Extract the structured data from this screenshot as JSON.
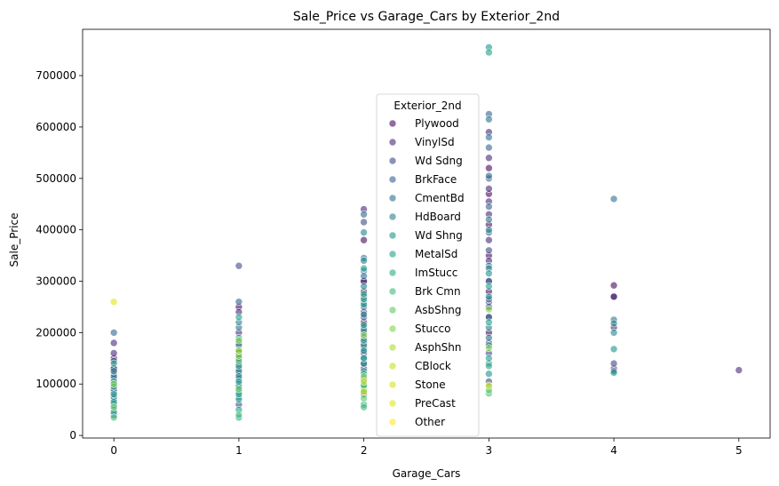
{
  "chart_data": {
    "type": "scatter",
    "title": "Sale_Price vs Garage_Cars by Exterior_2nd",
    "xlabel": "Garage_Cars",
    "ylabel": "Sale_Price",
    "xlim": [
      -0.25,
      5.25
    ],
    "ylim": [
      -5000,
      790000
    ],
    "xticks": [
      0,
      1,
      2,
      3,
      4,
      5
    ],
    "yticks": [
      0,
      100000,
      200000,
      300000,
      400000,
      500000,
      600000,
      700000
    ],
    "grid": false,
    "legend": {
      "title": "Exterior_2nd",
      "placement": "center"
    },
    "series": [
      {
        "name": "Plywood",
        "color": "#46085c",
        "points": [
          [
            0,
            150000
          ],
          [
            0,
            130000
          ],
          [
            1,
            140000
          ],
          [
            1,
            180000
          ],
          [
            1,
            250000
          ],
          [
            2,
            180000
          ],
          [
            2,
            220000
          ],
          [
            2,
            280000
          ],
          [
            2,
            300000
          ],
          [
            2,
            380000
          ],
          [
            3,
            200000
          ],
          [
            3,
            280000
          ],
          [
            3,
            350000
          ],
          [
            3,
            410000
          ],
          [
            3,
            470000
          ],
          [
            3,
            520000
          ],
          [
            4,
            292000
          ],
          [
            4,
            270000
          ]
        ]
      },
      {
        "name": "VinylSd",
        "color": "#482878",
        "points": [
          [
            0,
            130000
          ],
          [
            0,
            160000
          ],
          [
            0,
            180000
          ],
          [
            1,
            120000
          ],
          [
            1,
            160000
          ],
          [
            1,
            200000
          ],
          [
            1,
            240000
          ],
          [
            2,
            130000
          ],
          [
            2,
            160000
          ],
          [
            2,
            190000
          ],
          [
            2,
            210000
          ],
          [
            2,
            240000
          ],
          [
            2,
            270000
          ],
          [
            2,
            300000
          ],
          [
            2,
            440000
          ],
          [
            3,
            180000
          ],
          [
            3,
            230000
          ],
          [
            3,
            260000
          ],
          [
            3,
            300000
          ],
          [
            3,
            340000
          ],
          [
            3,
            380000
          ],
          [
            3,
            430000
          ],
          [
            3,
            455000
          ],
          [
            3,
            480000
          ],
          [
            3,
            540000
          ],
          [
            3,
            590000
          ],
          [
            4,
            270000
          ],
          [
            4,
            210000
          ],
          [
            4,
            130000
          ],
          [
            5,
            127000
          ]
        ]
      },
      {
        "name": "Wd Sdng",
        "color": "#3e4a89",
        "points": [
          [
            0,
            40000
          ],
          [
            0,
            60000
          ],
          [
            0,
            85000
          ],
          [
            0,
            100000
          ],
          [
            0,
            120000
          ],
          [
            0,
            145000
          ],
          [
            1,
            60000
          ],
          [
            1,
            85000
          ],
          [
            1,
            110000
          ],
          [
            1,
            130000
          ],
          [
            1,
            330000
          ],
          [
            2,
            80000
          ],
          [
            2,
            110000
          ],
          [
            2,
            140000
          ],
          [
            2,
            230000
          ],
          [
            2,
            415000
          ],
          [
            3,
            105000
          ],
          [
            3,
            160000
          ],
          [
            3,
            250000
          ],
          [
            3,
            360000
          ],
          [
            3,
            500000
          ],
          [
            4,
            140000
          ],
          [
            4,
            125000
          ]
        ]
      },
      {
        "name": "BrkFace",
        "color": "#33638d",
        "points": [
          [
            0,
            90000
          ],
          [
            0,
            110000
          ],
          [
            0,
            200000
          ],
          [
            1,
            100000
          ],
          [
            1,
            150000
          ],
          [
            1,
            260000
          ],
          [
            2,
            150000
          ],
          [
            2,
            200000
          ],
          [
            2,
            260000
          ],
          [
            2,
            320000
          ],
          [
            2,
            430000
          ],
          [
            3,
            230000
          ],
          [
            3,
            300000
          ],
          [
            3,
            395000
          ],
          [
            3,
            445000
          ],
          [
            3,
            560000
          ],
          [
            3,
            625000
          ]
        ]
      },
      {
        "name": "CmentBd",
        "color": "#2c728e",
        "points": [
          [
            0,
            70000
          ],
          [
            0,
            115000
          ],
          [
            1,
            150000
          ],
          [
            1,
            210000
          ],
          [
            2,
            170000
          ],
          [
            2,
            250000
          ],
          [
            2,
            310000
          ],
          [
            2,
            345000
          ],
          [
            3,
            190000
          ],
          [
            3,
            265000
          ],
          [
            3,
            330000
          ],
          [
            3,
            420000
          ],
          [
            3,
            505000
          ],
          [
            3,
            580000
          ],
          [
            3,
            615000
          ],
          [
            4,
            460000
          ],
          [
            4,
            225000
          ]
        ]
      },
      {
        "name": "HdBoard",
        "color": "#26828e",
        "points": [
          [
            0,
            50000
          ],
          [
            0,
            75000
          ],
          [
            0,
            125000
          ],
          [
            1,
            75000
          ],
          [
            1,
            95000
          ],
          [
            1,
            125000
          ],
          [
            1,
            165000
          ],
          [
            1,
            220000
          ],
          [
            2,
            100000
          ],
          [
            2,
            140000
          ],
          [
            2,
            175000
          ],
          [
            2,
            205000
          ],
          [
            2,
            235000
          ],
          [
            2,
            290000
          ],
          [
            2,
            340000
          ],
          [
            2,
            395000
          ],
          [
            3,
            140000
          ],
          [
            3,
            210000
          ],
          [
            3,
            270000
          ],
          [
            3,
            325000
          ],
          [
            3,
            400000
          ],
          [
            4,
            200000
          ],
          [
            4,
            218000
          ]
        ]
      },
      {
        "name": "Wd Shng",
        "color": "#1f928c",
        "points": [
          [
            0,
            80000
          ],
          [
            0,
            105000
          ],
          [
            1,
            70000
          ],
          [
            1,
            115000
          ],
          [
            1,
            175000
          ],
          [
            2,
            90000
          ],
          [
            2,
            125000
          ],
          [
            2,
            165000
          ],
          [
            2,
            255000
          ],
          [
            3,
            120000
          ],
          [
            3,
            175000
          ],
          [
            3,
            315000
          ],
          [
            3,
            755000
          ],
          [
            4,
            168000
          ]
        ]
      },
      {
        "name": "MetalSd",
        "color": "#1fa188",
        "points": [
          [
            0,
            45000
          ],
          [
            0,
            65000
          ],
          [
            0,
            95000
          ],
          [
            0,
            140000
          ],
          [
            1,
            50000
          ],
          [
            1,
            80000
          ],
          [
            1,
            105000
          ],
          [
            1,
            135000
          ],
          [
            1,
            190000
          ],
          [
            1,
            230000
          ],
          [
            2,
            60000
          ],
          [
            2,
            95000
          ],
          [
            2,
            120000
          ],
          [
            2,
            150000
          ],
          [
            2,
            185000
          ],
          [
            2,
            215000
          ],
          [
            2,
            265000
          ],
          [
            2,
            325000
          ],
          [
            3,
            95000
          ],
          [
            3,
            150000
          ],
          [
            3,
            220000
          ],
          [
            3,
            290000
          ],
          [
            3,
            745000
          ],
          [
            4,
            122000
          ]
        ]
      },
      {
        "name": "ImStucc",
        "color": "#28ae80",
        "points": [
          [
            1,
            35000
          ],
          [
            2,
            275000
          ],
          [
            3,
            135000
          ]
        ]
      },
      {
        "name": "Brk Cmn",
        "color": "#3fbc73",
        "points": [
          [
            0,
            35000
          ],
          [
            1,
            40000
          ],
          [
            2,
            55000
          ],
          [
            2,
            85000
          ],
          [
            3,
            82000
          ]
        ]
      },
      {
        "name": "AsbShng",
        "color": "#5ec962",
        "points": [
          [
            0,
            55000
          ],
          [
            1,
            90000
          ],
          [
            1,
            145000
          ],
          [
            2,
            72000
          ],
          [
            2,
            98000
          ],
          [
            3,
            88000
          ]
        ]
      },
      {
        "name": "Stucco",
        "color": "#84d44b",
        "points": [
          [
            0,
            100000
          ],
          [
            1,
            155000
          ],
          [
            1,
            185000
          ],
          [
            2,
            115000
          ],
          [
            2,
            195000
          ],
          [
            3,
            170000
          ],
          [
            3,
            245000
          ]
        ]
      },
      {
        "name": "AsphShn",
        "color": "#addc30",
        "points": [
          [
            1,
            165000
          ]
        ]
      },
      {
        "name": "CBlock",
        "color": "#c8e020",
        "points": [
          [
            2,
            105000
          ]
        ]
      },
      {
        "name": "Stone",
        "color": "#d8e219",
        "points": [
          [
            2,
            85000
          ],
          [
            3,
            97000
          ]
        ]
      },
      {
        "name": "PreCast",
        "color": "#e2e418",
        "points": [
          [
            0,
            260000
          ]
        ]
      },
      {
        "name": "Other",
        "color": "#fde725",
        "points": []
      }
    ]
  }
}
